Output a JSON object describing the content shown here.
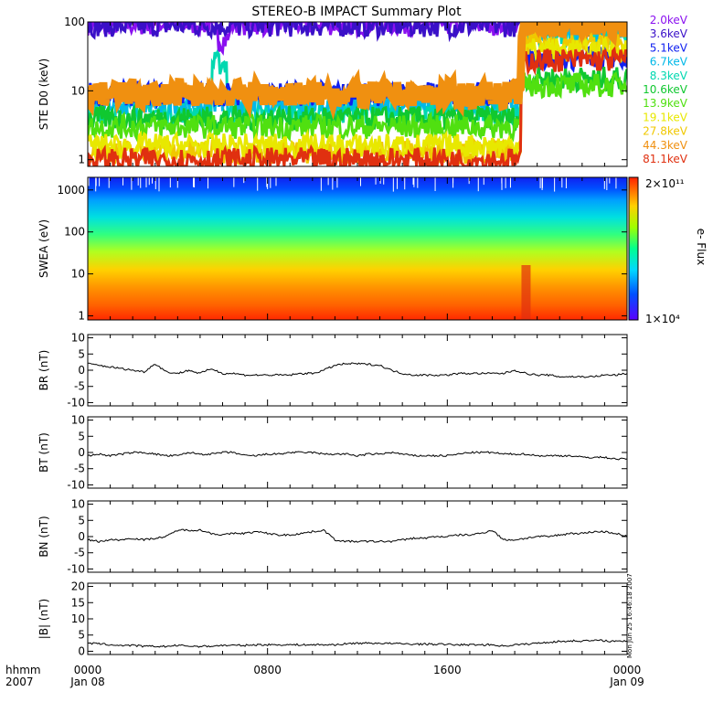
{
  "title": "STEREO-B IMPACT Summary Plot",
  "time_axis": {
    "row1_label": "hhmm",
    "row2_label": "2007",
    "ticks": [
      {
        "hour": 0,
        "label": "0000",
        "date": "Jan 08"
      },
      {
        "hour": 8,
        "label": "0800",
        "date": ""
      },
      {
        "hour": 16,
        "label": "1600",
        "date": ""
      },
      {
        "hour": 24,
        "label": "0000",
        "date": "Jan 09"
      }
    ],
    "range_hours": [
      0,
      24
    ]
  },
  "timestamp": "Mon Jun 25 16:46:18 2007",
  "colorbar": {
    "label": "e- Flux",
    "max_label": "2×10¹¹",
    "min_label": "1×10⁴"
  },
  "chart_data": [
    {
      "type": "line",
      "panel": "ste",
      "ylabel": "STE D0 (keV)",
      "yscale": "log",
      "ylim": [
        0.8,
        100
      ],
      "yticks": [
        1,
        10,
        100
      ],
      "series": [
        {
          "name": "2.0keV",
          "color": "#8a10f0",
          "level_before": 95,
          "level_after": 95
        },
        {
          "name": "3.6keV",
          "color": "#3a10c8",
          "level_before": 90,
          "level_after": 88
        },
        {
          "name": "5.1keV",
          "color": "#1020f0",
          "level_before": 9,
          "level_after": 30
        },
        {
          "name": "6.7keV",
          "color": "#00b8e8",
          "level_before": 7,
          "level_after": 70
        },
        {
          "name": "8.3keV",
          "color": "#00d8b0",
          "level_before": 5,
          "level_after": 60
        },
        {
          "name": "10.6keV",
          "color": "#10c830",
          "level_before": 4,
          "level_after": 15
        },
        {
          "name": "13.9keV",
          "color": "#50e010",
          "level_before": 3,
          "level_after": 12
        },
        {
          "name": "19.1keV",
          "color": "#e8e800",
          "level_before": 1.6,
          "level_after": 40
        },
        {
          "name": "27.8keV",
          "color": "#f0c800",
          "level_before": 1.3,
          "level_after": 50
        },
        {
          "name": "44.3keV",
          "color": "#f09010",
          "level_before": 9,
          "level_after": 90
        },
        {
          "name": "81.1keV",
          "color": "#e03010",
          "level_before": 1,
          "level_after": 28
        }
      ]
    },
    {
      "type": "heatmap",
      "panel": "swea",
      "ylabel": "SWEA (eV)",
      "yscale": "log",
      "ylim": [
        0.8,
        2000
      ],
      "yticks": [
        1,
        10,
        100,
        1000
      ],
      "zlabel": "e- Flux",
      "zlim": [
        10000,
        200000000000
      ]
    },
    {
      "type": "line",
      "panel": "br",
      "ylabel": "BR (nT)",
      "ylim": [
        -11,
        11
      ],
      "yticks": [
        -10,
        -5,
        0,
        5,
        10
      ],
      "x": [
        0,
        0.5,
        1,
        1.5,
        2,
        2.5,
        3,
        3.5,
        4,
        4.5,
        5,
        5.5,
        6,
        6.5,
        7,
        7.5,
        8,
        8.5,
        9,
        9.5,
        10,
        10.5,
        11,
        11.5,
        12,
        12.5,
        13,
        13.5,
        14,
        14.5,
        15,
        15.5,
        16,
        16.5,
        17,
        17.5,
        18,
        18.5,
        19,
        19.5,
        20,
        20.5,
        21,
        21.5,
        22,
        22.5,
        23,
        23.5,
        24
      ],
      "values": [
        2,
        1.5,
        1,
        0.5,
        0,
        -0.5,
        2,
        -0.5,
        -1,
        0,
        -1,
        0.5,
        -1,
        -1,
        -1.5,
        -1.5,
        -1.5,
        -1.5,
        -1.5,
        -1,
        -1,
        0,
        1.5,
        2,
        2,
        1.8,
        1.5,
        0,
        -1,
        -1.5,
        -1.5,
        -1.5,
        -1.5,
        -1,
        -1,
        -1,
        -1,
        -1,
        0,
        -1,
        -1.5,
        -1.5,
        -2,
        -2,
        -2,
        -2,
        -1.5,
        -1.5,
        -1
      ]
    },
    {
      "type": "line",
      "panel": "bt",
      "ylabel": "BT (nT)",
      "ylim": [
        -11,
        11
      ],
      "yticks": [
        -10,
        -5,
        0,
        5,
        10
      ],
      "x": [
        0,
        0.5,
        1,
        1.5,
        2,
        2.5,
        3,
        3.5,
        4,
        4.5,
        5,
        5.5,
        6,
        6.5,
        7,
        7.5,
        8,
        8.5,
        9,
        9.5,
        10,
        10.5,
        11,
        11.5,
        12,
        12.5,
        13,
        13.5,
        14,
        14.5,
        15,
        15.5,
        16,
        16.5,
        17,
        17.5,
        18,
        18.5,
        19,
        19.5,
        20,
        20.5,
        21,
        21.5,
        22,
        22.5,
        23,
        23.5,
        24
      ],
      "values": [
        -1,
        -0.5,
        -1,
        -0.5,
        0,
        0,
        -0.5,
        -1,
        -1,
        0,
        -0.5,
        -0.5,
        0,
        0,
        -1,
        -1,
        -0.5,
        -0.5,
        0,
        0,
        0,
        -0.5,
        -0.5,
        -0.5,
        -1,
        -0.5,
        -0.5,
        0,
        -0.5,
        -1,
        -1,
        -1,
        -1,
        -0.5,
        0,
        0,
        0,
        -0.5,
        -0.5,
        -0.5,
        -1,
        -1,
        -1,
        -1,
        -1.5,
        -1.5,
        -1.5,
        -2,
        -2
      ]
    },
    {
      "type": "line",
      "panel": "bn",
      "ylabel": "BN (nT)",
      "ylim": [
        -11,
        11
      ],
      "yticks": [
        -10,
        -5,
        0,
        5,
        10
      ],
      "x": [
        0,
        0.5,
        1,
        1.5,
        2,
        2.5,
        3,
        3.5,
        4,
        4.5,
        5,
        5.5,
        6,
        6.5,
        7,
        7.5,
        8,
        8.5,
        9,
        9.5,
        10,
        10.5,
        11,
        11.5,
        12,
        12.5,
        13,
        13.5,
        14,
        14.5,
        15,
        15.5,
        16,
        16.5,
        17,
        17.5,
        18,
        18.5,
        19,
        19.5,
        20,
        20.5,
        21,
        21.5,
        22,
        22.5,
        23,
        23.5,
        24
      ],
      "values": [
        -1,
        -1.5,
        -1,
        -1,
        -0.5,
        -1,
        -0.5,
        0,
        2,
        2,
        2,
        1,
        0.5,
        1,
        1,
        1.5,
        1,
        0.5,
        0.5,
        1,
        1.5,
        2,
        -1,
        -1.5,
        -1.5,
        -1.5,
        -1.5,
        -1.5,
        -1,
        -0.5,
        -0.5,
        0,
        0,
        0.5,
        0.5,
        1,
        2,
        -1,
        -1,
        -0.5,
        0,
        0,
        0.5,
        1,
        1,
        1.5,
        1.5,
        1,
        0
      ]
    },
    {
      "type": "line",
      "panel": "bmag",
      "ylabel": "|B| (nT)",
      "ylim": [
        -1,
        21
      ],
      "yticks": [
        0,
        5,
        10,
        15,
        20
      ],
      "x": [
        0,
        0.5,
        1,
        1.5,
        2,
        2.5,
        3,
        3.5,
        4,
        4.5,
        5,
        5.5,
        6,
        6.5,
        7,
        7.5,
        8,
        8.5,
        9,
        9.5,
        10,
        10.5,
        11,
        11.5,
        12,
        12.5,
        13,
        13.5,
        14,
        14.5,
        15,
        15.5,
        16,
        16.5,
        17,
        17.5,
        18,
        18.5,
        19,
        19.5,
        20,
        20.5,
        21,
        21.5,
        22,
        22.5,
        23,
        23.5,
        24
      ],
      "values": [
        2.5,
        2.3,
        2,
        1.8,
        1.8,
        1.5,
        1.5,
        1.5,
        1.8,
        1.6,
        1.5,
        1.6,
        1.8,
        1.8,
        1.8,
        2,
        2,
        2,
        2,
        2,
        2,
        2,
        2,
        2.3,
        2.5,
        2.5,
        2.5,
        2.4,
        2.3,
        2.2,
        2.2,
        2.2,
        2.1,
        2,
        2,
        2,
        2,
        1.6,
        2,
        2.2,
        2.5,
        2.8,
        3,
        3.2,
        3.2,
        3.3,
        3.3,
        3,
        3.2
      ]
    }
  ]
}
